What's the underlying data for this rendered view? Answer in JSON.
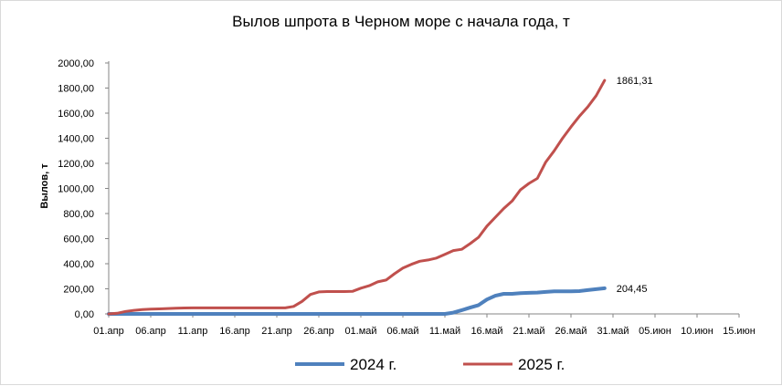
{
  "chart_data": {
    "type": "line",
    "title": "Вылов шпрота в Черном море с начала года, т",
    "xlabel": "",
    "ylabel": "Вылов, т",
    "ylim": [
      0,
      2000
    ],
    "yticks": [
      "0,00",
      "200,00",
      "400,00",
      "600,00",
      "800,00",
      "1000,00",
      "1200,00",
      "1400,00",
      "1600,00",
      "1800,00",
      "2000,00"
    ],
    "xlim": [
      "2025-04-01",
      "2025-06-15"
    ],
    "xticks": [
      "01.апр",
      "06.апр",
      "11.апр",
      "16.апр",
      "21.апр",
      "26.апр",
      "01.май",
      "06.май",
      "11.май",
      "16.май",
      "21.май",
      "26.май",
      "31.май",
      "05.июн",
      "10.июн",
      "15.июн"
    ],
    "legend_position": "bottom",
    "series": [
      {
        "name": "2024 г.",
        "color": "#4f81bd",
        "end_label": "204,45",
        "points": [
          [
            "2025-04-01",
            0
          ],
          [
            "2025-04-06",
            0
          ],
          [
            "2025-04-11",
            0
          ],
          [
            "2025-04-16",
            0
          ],
          [
            "2025-04-21",
            0
          ],
          [
            "2025-04-26",
            0
          ],
          [
            "2025-05-01",
            0
          ],
          [
            "2025-05-06",
            0
          ],
          [
            "2025-05-10",
            0
          ],
          [
            "2025-05-11",
            0
          ],
          [
            "2025-05-12",
            10
          ],
          [
            "2025-05-13",
            30
          ],
          [
            "2025-05-14",
            50
          ],
          [
            "2025-05-15",
            70
          ],
          [
            "2025-05-16",
            115
          ],
          [
            "2025-05-17",
            145
          ],
          [
            "2025-05-18",
            160
          ],
          [
            "2025-05-19",
            160
          ],
          [
            "2025-05-20",
            165
          ],
          [
            "2025-05-21",
            168
          ],
          [
            "2025-05-22",
            170
          ],
          [
            "2025-05-23",
            175
          ],
          [
            "2025-05-24",
            180
          ],
          [
            "2025-05-25",
            180
          ],
          [
            "2025-05-26",
            180
          ],
          [
            "2025-05-27",
            182
          ],
          [
            "2025-05-28",
            190
          ],
          [
            "2025-05-29",
            197
          ],
          [
            "2025-05-30",
            204.45
          ]
        ]
      },
      {
        "name": "2025 г.",
        "color": "#c0504d",
        "end_label": "1861,31",
        "points": [
          [
            "2025-04-01",
            0
          ],
          [
            "2025-04-02",
            5
          ],
          [
            "2025-04-03",
            20
          ],
          [
            "2025-04-04",
            28
          ],
          [
            "2025-04-05",
            35
          ],
          [
            "2025-04-06",
            38
          ],
          [
            "2025-04-07",
            40
          ],
          [
            "2025-04-08",
            43
          ],
          [
            "2025-04-09",
            45
          ],
          [
            "2025-04-10",
            47
          ],
          [
            "2025-04-11",
            48
          ],
          [
            "2025-04-15",
            48
          ],
          [
            "2025-04-20",
            48
          ],
          [
            "2025-04-22",
            48
          ],
          [
            "2025-04-23",
            60
          ],
          [
            "2025-04-24",
            100
          ],
          [
            "2025-04-25",
            155
          ],
          [
            "2025-04-26",
            175
          ],
          [
            "2025-04-27",
            178
          ],
          [
            "2025-04-28",
            178
          ],
          [
            "2025-04-29",
            178
          ],
          [
            "2025-04-30",
            180
          ],
          [
            "2025-05-01",
            205
          ],
          [
            "2025-05-02",
            225
          ],
          [
            "2025-05-03",
            255
          ],
          [
            "2025-05-04",
            270
          ],
          [
            "2025-05-05",
            320
          ],
          [
            "2025-05-06",
            365
          ],
          [
            "2025-05-07",
            395
          ],
          [
            "2025-05-08",
            420
          ],
          [
            "2025-05-09",
            430
          ],
          [
            "2025-05-10",
            445
          ],
          [
            "2025-05-11",
            475
          ],
          [
            "2025-05-12",
            505
          ],
          [
            "2025-05-13",
            515
          ],
          [
            "2025-05-14",
            560
          ],
          [
            "2025-05-15",
            610
          ],
          [
            "2025-05-16",
            700
          ],
          [
            "2025-05-17",
            770
          ],
          [
            "2025-05-18",
            840
          ],
          [
            "2025-05-19",
            900
          ],
          [
            "2025-05-20",
            990
          ],
          [
            "2025-05-21",
            1040
          ],
          [
            "2025-05-22",
            1080
          ],
          [
            "2025-05-23",
            1210
          ],
          [
            "2025-05-24",
            1300
          ],
          [
            "2025-05-25",
            1400
          ],
          [
            "2025-05-26",
            1490
          ],
          [
            "2025-05-27",
            1575
          ],
          [
            "2025-05-28",
            1650
          ],
          [
            "2025-05-29",
            1740
          ],
          [
            "2025-05-30",
            1861.31
          ]
        ]
      }
    ]
  }
}
